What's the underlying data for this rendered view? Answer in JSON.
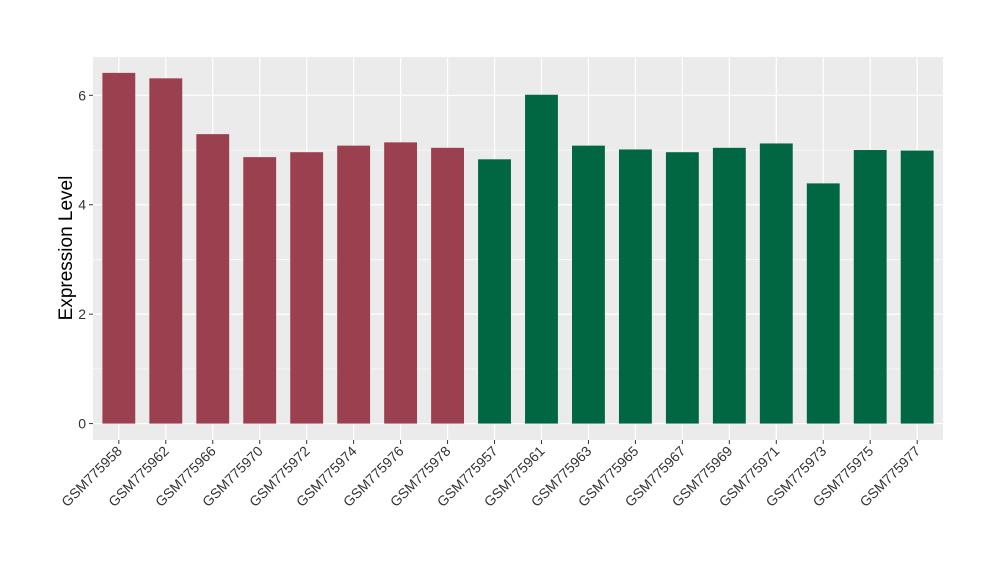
{
  "chart_data": {
    "type": "bar",
    "title": "",
    "xlabel": "",
    "ylabel": "Expression Level",
    "ylim": [
      -0.3,
      6.7
    ],
    "yticks": [
      0,
      2,
      4,
      6
    ],
    "grid": true,
    "legend": "none",
    "categories": [
      "GSM775958",
      "GSM775962",
      "GSM775966",
      "GSM775970",
      "GSM775972",
      "GSM775974",
      "GSM775976",
      "GSM775978",
      "GSM775957",
      "GSM775961",
      "GSM775963",
      "GSM775965",
      "GSM775967",
      "GSM775969",
      "GSM775971",
      "GSM775973",
      "GSM775975",
      "GSM775977"
    ],
    "values": [
      6.41,
      6.31,
      5.29,
      4.87,
      4.96,
      5.08,
      5.14,
      5.04,
      4.83,
      6.01,
      5.08,
      5.01,
      4.96,
      5.04,
      5.12,
      4.39,
      5.0,
      4.99
    ],
    "colors": [
      "#9b404f",
      "#9b404f",
      "#9b404f",
      "#9b404f",
      "#9b404f",
      "#9b404f",
      "#9b404f",
      "#9b404f",
      "#006743",
      "#006743",
      "#006743",
      "#006743",
      "#006743",
      "#006743",
      "#006743",
      "#006743",
      "#006743",
      "#006743"
    ],
    "panel_background": "#ebebeb",
    "gridline_color": "#ffffff"
  }
}
